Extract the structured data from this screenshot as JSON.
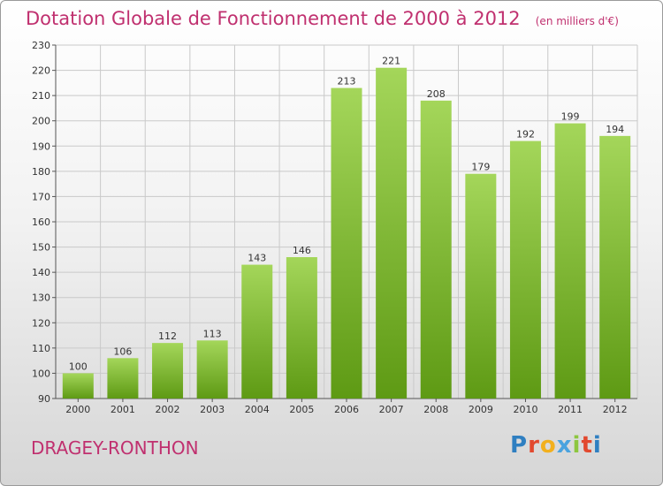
{
  "header": {
    "title": "Dotation Globale de Fonctionnement de 2000 à 2012",
    "unit": "(en milliers d'€)"
  },
  "footer": {
    "commune": "DRAGEY-RONTHON",
    "logo": "Proxiti",
    "logo_colors": [
      "#2f7fc1",
      "#e2492f",
      "#f2b01e",
      "#4aa3df",
      "#8dc63f",
      "#e2492f",
      "#2f7fc1"
    ]
  },
  "colors": {
    "bar_light": "#a4d65a",
    "bar_dark": "#5e9a14",
    "grid": "#c9c9c9",
    "text": "#333333",
    "accent": "#c0306f"
  },
  "chart_data": {
    "type": "bar",
    "title": "Dotation Globale de Fonctionnement de 2000 à 2012",
    "categories": [
      "2000",
      "2001",
      "2002",
      "2003",
      "2004",
      "2005",
      "2006",
      "2007",
      "2008",
      "2009",
      "2010",
      "2011",
      "2012"
    ],
    "values": [
      100,
      106,
      112,
      113,
      143,
      146,
      213,
      221,
      208,
      179,
      192,
      199,
      194
    ],
    "yticks": [
      90,
      100,
      110,
      120,
      130,
      140,
      150,
      160,
      170,
      180,
      190,
      200,
      210,
      220,
      230
    ],
    "ylim": [
      90,
      230
    ],
    "xlabel": "",
    "ylabel": "",
    "grid": true,
    "data_labels": true
  }
}
